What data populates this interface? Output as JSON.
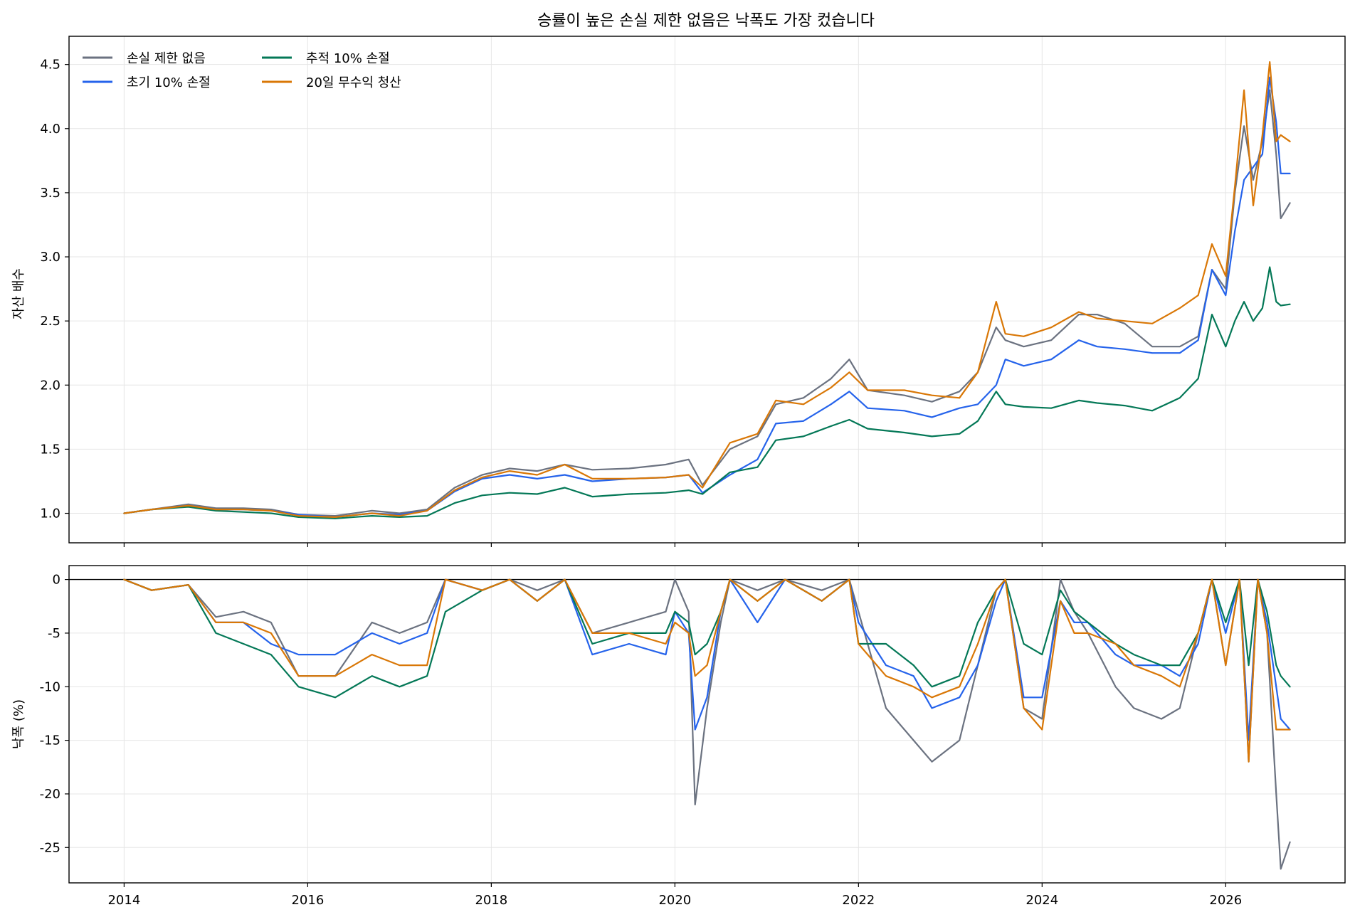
{
  "chart_data": [
    {
      "type": "line",
      "title": "승률이 높은 손실 제한 없음은 낙폭도 가장 컸습니다",
      "xlabel": "",
      "ylabel": "자산 배수",
      "xlim": [
        2013.4,
        2027.3
      ],
      "ylim": [
        0.77,
        4.72
      ],
      "yticks": [
        1.0,
        1.5,
        2.0,
        2.5,
        3.0,
        3.5,
        4.0,
        4.5
      ],
      "ytick_labels": [
        "1.0",
        "1.5",
        "2.0",
        "2.5",
        "3.0",
        "3.5",
        "4.0",
        "4.5"
      ],
      "xticks": [
        2014,
        2016,
        2018,
        2020,
        2022,
        2024,
        2026
      ],
      "grid": true,
      "legend_position": "upper-left",
      "legend_columns": 2,
      "series": [
        {
          "name": "손실 제한 없음",
          "color": "#6b7280",
          "x": [
            2014.0,
            2014.3,
            2014.7,
            2015.0,
            2015.3,
            2015.6,
            2015.9,
            2016.3,
            2016.7,
            2017.0,
            2017.3,
            2017.6,
            2017.9,
            2018.2,
            2018.5,
            2018.8,
            2019.1,
            2019.5,
            2019.9,
            2020.15,
            2020.3,
            2020.6,
            2020.9,
            2021.1,
            2021.4,
            2021.7,
            2021.9,
            2022.1,
            2022.5,
            2022.8,
            2023.1,
            2023.3,
            2023.5,
            2023.6,
            2023.8,
            2024.1,
            2024.4,
            2024.6,
            2024.9,
            2025.2,
            2025.5,
            2025.7,
            2025.85,
            2026.0,
            2026.1,
            2026.2,
            2026.3,
            2026.4,
            2026.48,
            2026.55,
            2026.6,
            2026.7
          ],
          "y": [
            1.0,
            1.03,
            1.07,
            1.04,
            1.04,
            1.03,
            0.99,
            0.98,
            1.02,
            1.0,
            1.03,
            1.2,
            1.3,
            1.35,
            1.33,
            1.38,
            1.34,
            1.35,
            1.38,
            1.42,
            1.22,
            1.5,
            1.6,
            1.85,
            1.9,
            2.05,
            2.2,
            1.96,
            1.92,
            1.87,
            1.95,
            2.1,
            2.45,
            2.35,
            2.3,
            2.35,
            2.55,
            2.55,
            2.48,
            2.3,
            2.3,
            2.38,
            2.9,
            2.75,
            3.5,
            4.02,
            3.6,
            3.9,
            4.3,
            3.8,
            3.3,
            3.42
          ]
        },
        {
          "name": "초기 10% 손절",
          "color": "#2563eb",
          "x": [
            2014.0,
            2014.3,
            2014.7,
            2015.0,
            2015.3,
            2015.6,
            2015.9,
            2016.3,
            2016.7,
            2017.0,
            2017.3,
            2017.6,
            2017.9,
            2018.2,
            2018.5,
            2018.8,
            2019.1,
            2019.5,
            2019.9,
            2020.15,
            2020.3,
            2020.6,
            2020.9,
            2021.1,
            2021.4,
            2021.7,
            2021.9,
            2022.1,
            2022.5,
            2022.8,
            2023.1,
            2023.3,
            2023.5,
            2023.6,
            2023.8,
            2024.1,
            2024.4,
            2024.6,
            2024.9,
            2025.2,
            2025.5,
            2025.7,
            2025.85,
            2026.0,
            2026.1,
            2026.2,
            2026.3,
            2026.4,
            2026.48,
            2026.55,
            2026.6,
            2026.7
          ],
          "y": [
            1.0,
            1.03,
            1.06,
            1.03,
            1.03,
            1.02,
            0.99,
            0.97,
            1.0,
            0.99,
            1.02,
            1.17,
            1.27,
            1.3,
            1.27,
            1.3,
            1.25,
            1.27,
            1.28,
            1.3,
            1.16,
            1.3,
            1.42,
            1.7,
            1.72,
            1.85,
            1.95,
            1.82,
            1.8,
            1.75,
            1.82,
            1.85,
            2.0,
            2.2,
            2.15,
            2.2,
            2.35,
            2.3,
            2.28,
            2.25,
            2.25,
            2.35,
            2.9,
            2.7,
            3.2,
            3.6,
            3.7,
            3.8,
            4.4,
            4.05,
            3.65,
            3.65
          ]
        },
        {
          "name": "추적 10% 손절",
          "color": "#047857",
          "x": [
            2014.0,
            2014.3,
            2014.7,
            2015.0,
            2015.3,
            2015.6,
            2015.9,
            2016.3,
            2016.7,
            2017.0,
            2017.3,
            2017.6,
            2017.9,
            2018.2,
            2018.5,
            2018.8,
            2019.1,
            2019.5,
            2019.9,
            2020.15,
            2020.3,
            2020.6,
            2020.9,
            2021.1,
            2021.4,
            2021.7,
            2021.9,
            2022.1,
            2022.5,
            2022.8,
            2023.1,
            2023.3,
            2023.5,
            2023.6,
            2023.8,
            2024.1,
            2024.4,
            2024.6,
            2024.9,
            2025.2,
            2025.5,
            2025.7,
            2025.85,
            2026.0,
            2026.1,
            2026.2,
            2026.3,
            2026.4,
            2026.48,
            2026.55,
            2026.6,
            2026.7
          ],
          "y": [
            1.0,
            1.03,
            1.05,
            1.02,
            1.01,
            1.0,
            0.97,
            0.96,
            0.98,
            0.97,
            0.98,
            1.08,
            1.14,
            1.16,
            1.15,
            1.2,
            1.13,
            1.15,
            1.16,
            1.18,
            1.15,
            1.32,
            1.36,
            1.57,
            1.6,
            1.68,
            1.73,
            1.66,
            1.63,
            1.6,
            1.62,
            1.72,
            1.95,
            1.85,
            1.83,
            1.82,
            1.88,
            1.86,
            1.84,
            1.8,
            1.9,
            2.05,
            2.55,
            2.3,
            2.5,
            2.65,
            2.5,
            2.6,
            2.92,
            2.65,
            2.62,
            2.63
          ]
        },
        {
          "name": "20일 무수익 청산",
          "color": "#d97706",
          "x": [
            2014.0,
            2014.3,
            2014.7,
            2015.0,
            2015.3,
            2015.6,
            2015.9,
            2016.3,
            2016.7,
            2017.0,
            2017.3,
            2017.6,
            2017.9,
            2018.2,
            2018.5,
            2018.8,
            2019.1,
            2019.5,
            2019.9,
            2020.15,
            2020.3,
            2020.6,
            2020.9,
            2021.1,
            2021.4,
            2021.7,
            2021.9,
            2022.1,
            2022.5,
            2022.8,
            2023.1,
            2023.3,
            2023.5,
            2023.6,
            2023.8,
            2024.1,
            2024.4,
            2024.6,
            2024.9,
            2025.2,
            2025.5,
            2025.7,
            2025.85,
            2026.0,
            2026.1,
            2026.2,
            2026.3,
            2026.4,
            2026.48,
            2026.55,
            2026.6,
            2026.7
          ],
          "y": [
            1.0,
            1.03,
            1.06,
            1.03,
            1.03,
            1.02,
            0.98,
            0.97,
            1.0,
            0.98,
            1.02,
            1.18,
            1.28,
            1.33,
            1.3,
            1.38,
            1.27,
            1.27,
            1.28,
            1.3,
            1.2,
            1.55,
            1.62,
            1.88,
            1.85,
            1.98,
            2.1,
            1.96,
            1.96,
            1.92,
            1.9,
            2.1,
            2.65,
            2.4,
            2.38,
            2.45,
            2.57,
            2.52,
            2.5,
            2.48,
            2.6,
            2.7,
            3.1,
            2.85,
            3.55,
            4.3,
            3.4,
            3.95,
            4.52,
            3.9,
            3.95,
            3.9
          ]
        }
      ]
    },
    {
      "type": "line",
      "title": "",
      "xlabel": "",
      "ylabel": "낙폭 (%)",
      "xlim": [
        2013.4,
        2027.3
      ],
      "ylim": [
        -28.3,
        1.3
      ],
      "yticks": [
        0,
        -5,
        -10,
        -15,
        -20,
        -25
      ],
      "ytick_labels": [
        "0",
        "-5",
        "-10",
        "-15",
        "-20",
        "-25"
      ],
      "xticks": [
        2014,
        2016,
        2018,
        2020,
        2022,
        2024,
        2026
      ],
      "xtick_labels": [
        "2014",
        "2016",
        "2018",
        "2020",
        "2022",
        "2024",
        "2026"
      ],
      "grid": true,
      "zero_line": true,
      "series": [
        {
          "name": "손실 제한 없음",
          "color": "#6b7280",
          "x": [
            2014.0,
            2014.3,
            2014.7,
            2015.0,
            2015.3,
            2015.6,
            2015.9,
            2016.3,
            2016.7,
            2017.0,
            2017.3,
            2017.5,
            2017.9,
            2018.2,
            2018.5,
            2018.8,
            2019.1,
            2019.5,
            2019.9,
            2020.0,
            2020.15,
            2020.22,
            2020.35,
            2020.5,
            2020.6,
            2020.9,
            2021.2,
            2021.6,
            2021.9,
            2022.0,
            2022.3,
            2022.6,
            2022.8,
            2023.1,
            2023.3,
            2023.5,
            2023.6,
            2023.8,
            2024.0,
            2024.2,
            2024.35,
            2024.5,
            2024.8,
            2025.0,
            2025.3,
            2025.5,
            2025.7,
            2025.85,
            2026.0,
            2026.15,
            2026.25,
            2026.35,
            2026.45,
            2026.55,
            2026.6,
            2026.7
          ],
          "y": [
            0,
            -1,
            -0.5,
            -3.5,
            -3,
            -4,
            -9,
            -9,
            -4,
            -5,
            -4,
            0,
            -1,
            0,
            -1,
            0,
            -5,
            -4,
            -3,
            0,
            -3,
            -21,
            -12,
            -4,
            0,
            -1,
            0,
            -1,
            0,
            -3,
            -12,
            -15,
            -17,
            -15,
            -8,
            -1,
            0,
            -12,
            -13,
            0,
            -3,
            -5,
            -10,
            -12,
            -13,
            -12,
            -5,
            0,
            -8,
            0,
            -17,
            0,
            -5,
            -20,
            -27,
            -24.5
          ]
        },
        {
          "name": "초기 10% 손절",
          "color": "#2563eb",
          "x": [
            2014.0,
            2014.3,
            2014.7,
            2015.0,
            2015.3,
            2015.6,
            2015.9,
            2016.3,
            2016.7,
            2017.0,
            2017.3,
            2017.5,
            2017.9,
            2018.2,
            2018.5,
            2018.8,
            2019.1,
            2019.5,
            2019.9,
            2020.0,
            2020.15,
            2020.22,
            2020.35,
            2020.5,
            2020.6,
            2020.9,
            2021.2,
            2021.6,
            2021.9,
            2022.0,
            2022.3,
            2022.6,
            2022.8,
            2023.1,
            2023.3,
            2023.5,
            2023.6,
            2023.8,
            2024.0,
            2024.2,
            2024.35,
            2024.5,
            2024.8,
            2025.0,
            2025.3,
            2025.5,
            2025.7,
            2025.85,
            2026.0,
            2026.15,
            2026.25,
            2026.35,
            2026.45,
            2026.55,
            2026.6,
            2026.7
          ],
          "y": [
            0,
            -1,
            -0.5,
            -4,
            -4,
            -6,
            -7,
            -7,
            -5,
            -6,
            -5,
            0,
            -1,
            0,
            -2,
            0,
            -7,
            -6,
            -7,
            -3,
            -5,
            -14,
            -11,
            -3,
            0,
            -4,
            0,
            -2,
            0,
            -4,
            -8,
            -9,
            -12,
            -11,
            -8,
            -2,
            0,
            -11,
            -11,
            -2,
            -4,
            -4,
            -7,
            -8,
            -8,
            -9,
            -6,
            0,
            -5,
            0,
            -15,
            0,
            -4,
            -10,
            -13,
            -14
          ]
        },
        {
          "name": "추적 10% 손절",
          "color": "#047857",
          "x": [
            2014.0,
            2014.3,
            2014.7,
            2015.0,
            2015.3,
            2015.6,
            2015.9,
            2016.3,
            2016.7,
            2017.0,
            2017.3,
            2017.5,
            2017.9,
            2018.2,
            2018.5,
            2018.8,
            2019.1,
            2019.5,
            2019.9,
            2020.0,
            2020.15,
            2020.22,
            2020.35,
            2020.5,
            2020.6,
            2020.9,
            2021.2,
            2021.6,
            2021.9,
            2022.0,
            2022.3,
            2022.6,
            2022.8,
            2023.1,
            2023.3,
            2023.5,
            2023.6,
            2023.8,
            2024.0,
            2024.2,
            2024.35,
            2024.5,
            2024.8,
            2025.0,
            2025.3,
            2025.5,
            2025.7,
            2025.85,
            2026.0,
            2026.15,
            2026.25,
            2026.35,
            2026.45,
            2026.55,
            2026.6,
            2026.7
          ],
          "y": [
            0,
            -1,
            -0.5,
            -5,
            -6,
            -7,
            -10,
            -11,
            -9,
            -10,
            -9,
            -3,
            -1,
            0,
            -2,
            0,
            -6,
            -5,
            -5,
            -3,
            -4,
            -7,
            -6,
            -3,
            0,
            -2,
            0,
            -2,
            0,
            -6,
            -6,
            -8,
            -10,
            -9,
            -4,
            -1,
            0,
            -6,
            -7,
            -1,
            -3,
            -4,
            -6,
            -7,
            -8,
            -8,
            -5,
            0,
            -4,
            0,
            -8,
            0,
            -3,
            -8,
            -9,
            -10
          ]
        },
        {
          "name": "20일 무수익 청산",
          "color": "#d97706",
          "x": [
            2014.0,
            2014.3,
            2014.7,
            2015.0,
            2015.3,
            2015.6,
            2015.9,
            2016.3,
            2016.7,
            2017.0,
            2017.3,
            2017.5,
            2017.9,
            2018.2,
            2018.5,
            2018.8,
            2019.1,
            2019.5,
            2019.9,
            2020.0,
            2020.15,
            2020.22,
            2020.35,
            2020.5,
            2020.6,
            2020.9,
            2021.2,
            2021.6,
            2021.9,
            2022.0,
            2022.3,
            2022.6,
            2022.8,
            2023.1,
            2023.3,
            2023.5,
            2023.6,
            2023.8,
            2024.0,
            2024.2,
            2024.35,
            2024.5,
            2024.8,
            2025.0,
            2025.3,
            2025.5,
            2025.7,
            2025.85,
            2026.0,
            2026.15,
            2026.25,
            2026.35,
            2026.45,
            2026.55,
            2026.6,
            2026.7
          ],
          "y": [
            0,
            -1,
            -0.5,
            -4,
            -4,
            -5,
            -9,
            -9,
            -7,
            -8,
            -8,
            0,
            -1,
            0,
            -2,
            0,
            -5,
            -5,
            -6,
            -4,
            -5,
            -9,
            -8,
            -3,
            0,
            -2,
            0,
            -2,
            0,
            -6,
            -9,
            -10,
            -11,
            -10,
            -6,
            -1,
            0,
            -12,
            -14,
            -2,
            -5,
            -5,
            -6,
            -8,
            -9,
            -10,
            -5,
            0,
            -8,
            0,
            -17,
            0,
            -5,
            -14,
            -14,
            -14
          ]
        }
      ]
    }
  ]
}
